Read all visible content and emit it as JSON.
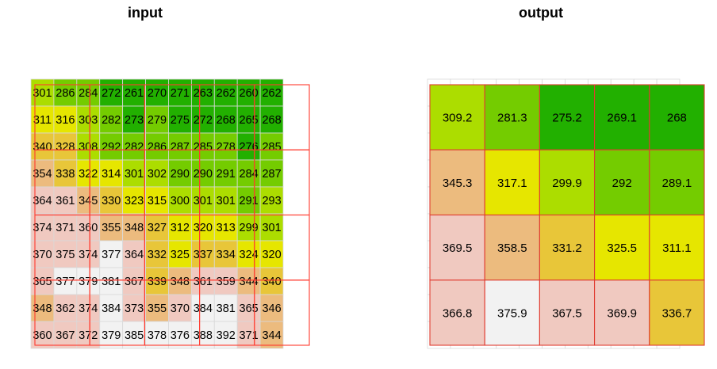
{
  "panels": {
    "left_title": "input",
    "right_title": "output"
  },
  "colors": {
    "scale": [
      "#22b000",
      "#74cc00",
      "#acdd00",
      "#e6e600",
      "#e8c639",
      "#ecbb7e",
      "#f0c9c0",
      "#f2f2f2"
    ],
    "grid_line": "#d9d9d9",
    "block_outline": "#ff3b2f",
    "output_cell_border": "#e03c31"
  },
  "chart_data": [
    {
      "type": "heatmap",
      "title": "input",
      "rows": 10,
      "cols": 11,
      "values": [
        [
          301,
          286,
          284,
          272,
          261,
          270,
          271,
          263,
          262,
          260,
          262
        ],
        [
          311,
          316,
          303,
          282,
          273,
          279,
          275,
          272,
          268,
          265,
          268
        ],
        [
          340,
          328,
          308,
          292,
          282,
          286,
          287,
          285,
          278,
          276,
          285
        ],
        [
          354,
          338,
          322,
          314,
          301,
          302,
          290,
          290,
          291,
          284,
          287
        ],
        [
          364,
          361,
          345,
          330,
          323,
          315,
          300,
          301,
          301,
          291,
          293
        ],
        [
          374,
          371,
          360,
          355,
          348,
          327,
          312,
          320,
          313,
          299,
          301
        ],
        [
          370,
          375,
          374,
          377,
          364,
          332,
          325,
          337,
          334,
          324,
          320
        ],
        [
          365,
          377,
          379,
          381,
          367,
          339,
          348,
          361,
          359,
          344,
          340
        ],
        [
          348,
          362,
          374,
          384,
          373,
          355,
          370,
          384,
          381,
          365,
          346
        ],
        [
          360,
          367,
          372,
          379,
          385,
          378,
          376,
          388,
          392,
          371,
          344
        ]
      ],
      "labels": [
        [
          "301",
          "286",
          "284",
          "272",
          "261",
          "270",
          "271",
          "263",
          "262",
          "260",
          "262"
        ],
        [
          "311",
          "316",
          "303",
          "282",
          "273",
          "279",
          "275",
          "272",
          "268",
          "265",
          "268"
        ],
        [
          "340",
          "328",
          "308",
          "292",
          "282",
          "286",
          "287",
          "285",
          "278",
          "276",
          "285"
        ],
        [
          "354",
          "338",
          "322",
          "314",
          "301",
          "302",
          "290",
          "290",
          "291",
          "284",
          "287"
        ],
        [
          "364",
          "361",
          "345",
          "330",
          "323",
          "315",
          "300",
          "301",
          "301",
          "291",
          "293"
        ],
        [
          "374",
          "371",
          "360",
          "355",
          "348",
          "327",
          "312",
          "320",
          "313",
          "299",
          "301"
        ],
        [
          "370",
          "375",
          "374",
          "377",
          "364",
          "332",
          "325",
          "337",
          "334",
          "324",
          "320"
        ],
        [
          "365",
          "377",
          "379",
          "381",
          "367",
          "339",
          "348",
          "361",
          "359",
          "344",
          "340"
        ],
        [
          "348",
          "362",
          "374",
          "384",
          "373",
          "355",
          "370",
          "384",
          "381",
          "365",
          "346"
        ],
        [
          "360",
          "367",
          "372",
          "379",
          "385",
          "378",
          "376",
          "388",
          "392",
          "371",
          "344"
        ]
      ],
      "grid": true
    },
    {
      "type": "heatmap",
      "title": "output",
      "rows": 4,
      "cols": 5,
      "values": [
        [
          309.2,
          281.3,
          275.2,
          269.1,
          268
        ],
        [
          345.3,
          317.1,
          299.9,
          292,
          289.1
        ],
        [
          369.5,
          358.5,
          331.2,
          325.5,
          311.1
        ],
        [
          366.8,
          375.9,
          367.5,
          369.9,
          336.7
        ]
      ],
      "labels": [
        [
          "309.2",
          "281.3",
          "275.2",
          "269.1",
          "268"
        ],
        [
          "345.3",
          "317.1",
          "299.9",
          "292",
          "289.1"
        ],
        [
          "369.5",
          "358.5",
          "331.2",
          "325.5",
          "311.1"
        ],
        [
          "366.8",
          "375.9",
          "367.5",
          "369.9",
          "336.7"
        ]
      ],
      "grid": true
    }
  ]
}
